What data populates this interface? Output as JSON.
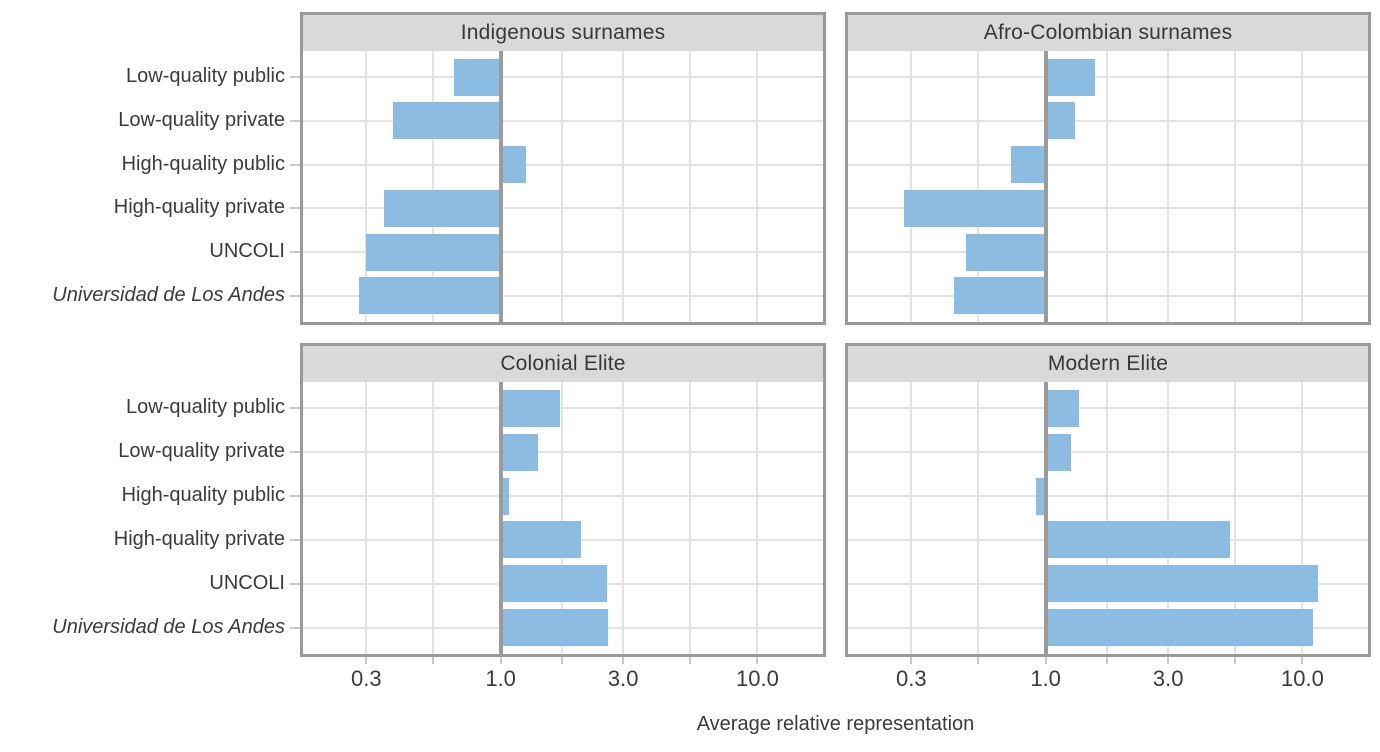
{
  "chart_data": {
    "type": "bar",
    "orientation": "horizontal",
    "facets": "2x2 grid",
    "xlabel": "Average relative representation",
    "x_scale": "log10",
    "x_domain": [
      0.17,
      18
    ],
    "x_ticks": [
      {
        "value": 0.3,
        "label": "0.3"
      },
      {
        "value": 1.0,
        "label": "1.0"
      },
      {
        "value": 3.0,
        "label": "3.0"
      },
      {
        "value": 10.0,
        "label": "10.0"
      }
    ],
    "x_grid_values": [
      0.3,
      0.5477,
      1.0,
      1.7321,
      3.0,
      5.4772,
      10.0
    ],
    "reference_line_x": 1.0,
    "grid": "on",
    "legend": "none",
    "categories": [
      {
        "label": "Low-quality public",
        "italic": false
      },
      {
        "label": "Low-quality private",
        "italic": false
      },
      {
        "label": "High-quality public",
        "italic": false
      },
      {
        "label": "High-quality private",
        "italic": false
      },
      {
        "label": "UNCOLI",
        "italic": false
      },
      {
        "label": "Universidad de Los Andes",
        "italic": true
      }
    ],
    "panels": [
      {
        "title": "Indigenous surnames",
        "values": [
          0.66,
          0.38,
          1.25,
          0.35,
          0.3,
          0.28
        ]
      },
      {
        "title": "Afro-Colombian surnames",
        "values": [
          1.55,
          1.3,
          0.73,
          0.28,
          0.49,
          0.44
        ]
      },
      {
        "title": "Colonial Elite",
        "values": [
          1.7,
          1.4,
          1.08,
          2.05,
          2.6,
          2.62
        ]
      },
      {
        "title": "Modern Elite",
        "values": [
          1.35,
          1.25,
          0.92,
          5.2,
          11.5,
          11.0
        ]
      }
    ],
    "colors": {
      "bar": "#8CBCE2",
      "strip_bg": "#D9D9D9",
      "panel_border": "#9A9A9A",
      "grid": "#E3E3E3",
      "reference_line": "#9B9B9B",
      "tick": "#C9C9C9",
      "text": "#3B3B3B"
    }
  }
}
